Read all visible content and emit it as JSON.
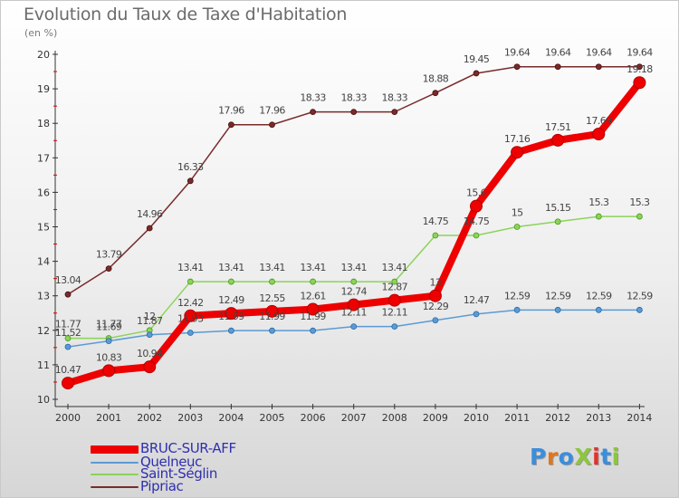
{
  "title": "Evolution du Taux de Taxe d'Habitation",
  "subtitle": "(en %)",
  "logo": {
    "text": "ProXiti",
    "letter_colors": [
      "#3a8ede",
      "#e0761c",
      "#3a8ede",
      "#8cc63f",
      "#e2322d",
      "#3a8ede",
      "#8cc63f"
    ]
  },
  "chart_data": {
    "type": "line",
    "title": "Evolution du Taux de Taxe d'Habitation",
    "ylabel": "(en %)",
    "xlabel": "",
    "x": [
      "2000",
      "2001",
      "2002",
      "2003",
      "2004",
      "2005",
      "2006",
      "2007",
      "2008",
      "2009",
      "2010",
      "2011",
      "2012",
      "2013",
      "2014"
    ],
    "ylim": [
      10,
      20
    ],
    "yticks": [
      "10",
      "11",
      "12",
      "13",
      "14",
      "15",
      "16",
      "17",
      "18",
      "19",
      "20"
    ],
    "grid": false,
    "legend_position": "bottom-left",
    "series": [
      {
        "name": "BRUC-SUR-AFF",
        "color": "#ee0000",
        "values": [
          10.47,
          10.83,
          10.94,
          12.42,
          12.49,
          12.55,
          12.61,
          12.74,
          12.87,
          13.0,
          15.6,
          17.16,
          17.51,
          17.69,
          19.18
        ],
        "labels": [
          "10.47",
          "10.83",
          "10.94",
          "12.42",
          "12.49",
          "12.55",
          "12.61",
          "12.74",
          "12.87",
          "13",
          "15.6",
          "17.16",
          "17.51",
          "17.69",
          "19.18"
        ]
      },
      {
        "name": "Quelneuc",
        "color": "#5b9bd5",
        "values": [
          11.52,
          11.69,
          11.87,
          11.93,
          11.99,
          11.99,
          11.99,
          12.11,
          12.11,
          12.29,
          12.47,
          12.59,
          12.59,
          12.59,
          12.59
        ],
        "labels": [
          "11.52",
          "11.69",
          "11.87",
          "11.93",
          "11.99",
          "11.99",
          "11.99",
          "12.11",
          "12.11",
          "12.29",
          "12.47",
          "12.59",
          "12.59",
          "12.59",
          "12.59"
        ]
      },
      {
        "name": "Saint-Séglin",
        "color": "#8cd35a",
        "values": [
          11.77,
          11.77,
          12.0,
          13.41,
          13.41,
          13.41,
          13.41,
          13.41,
          13.41,
          14.75,
          14.75,
          15.0,
          15.15,
          15.3,
          15.3
        ],
        "labels": [
          "11.77",
          "11.77",
          "12",
          "13.41",
          "13.41",
          "13.41",
          "13.41",
          "13.41",
          "13.41",
          "14.75",
          "14.75",
          "15",
          "15.15",
          "15.3",
          "15.3"
        ]
      },
      {
        "name": "Pipriac",
        "color": "#7a2a2a",
        "values": [
          13.04,
          13.79,
          14.96,
          16.33,
          17.96,
          17.96,
          18.33,
          18.33,
          18.33,
          18.88,
          19.45,
          19.64,
          19.64,
          19.64,
          19.64
        ],
        "labels": [
          "13.04",
          "13.79",
          "14.96",
          "16.33",
          "17.96",
          "17.96",
          "18.33",
          "18.33",
          "18.33",
          "18.88",
          "19.45",
          "19.64",
          "19.64",
          "19.64",
          "19.64"
        ]
      }
    ]
  }
}
